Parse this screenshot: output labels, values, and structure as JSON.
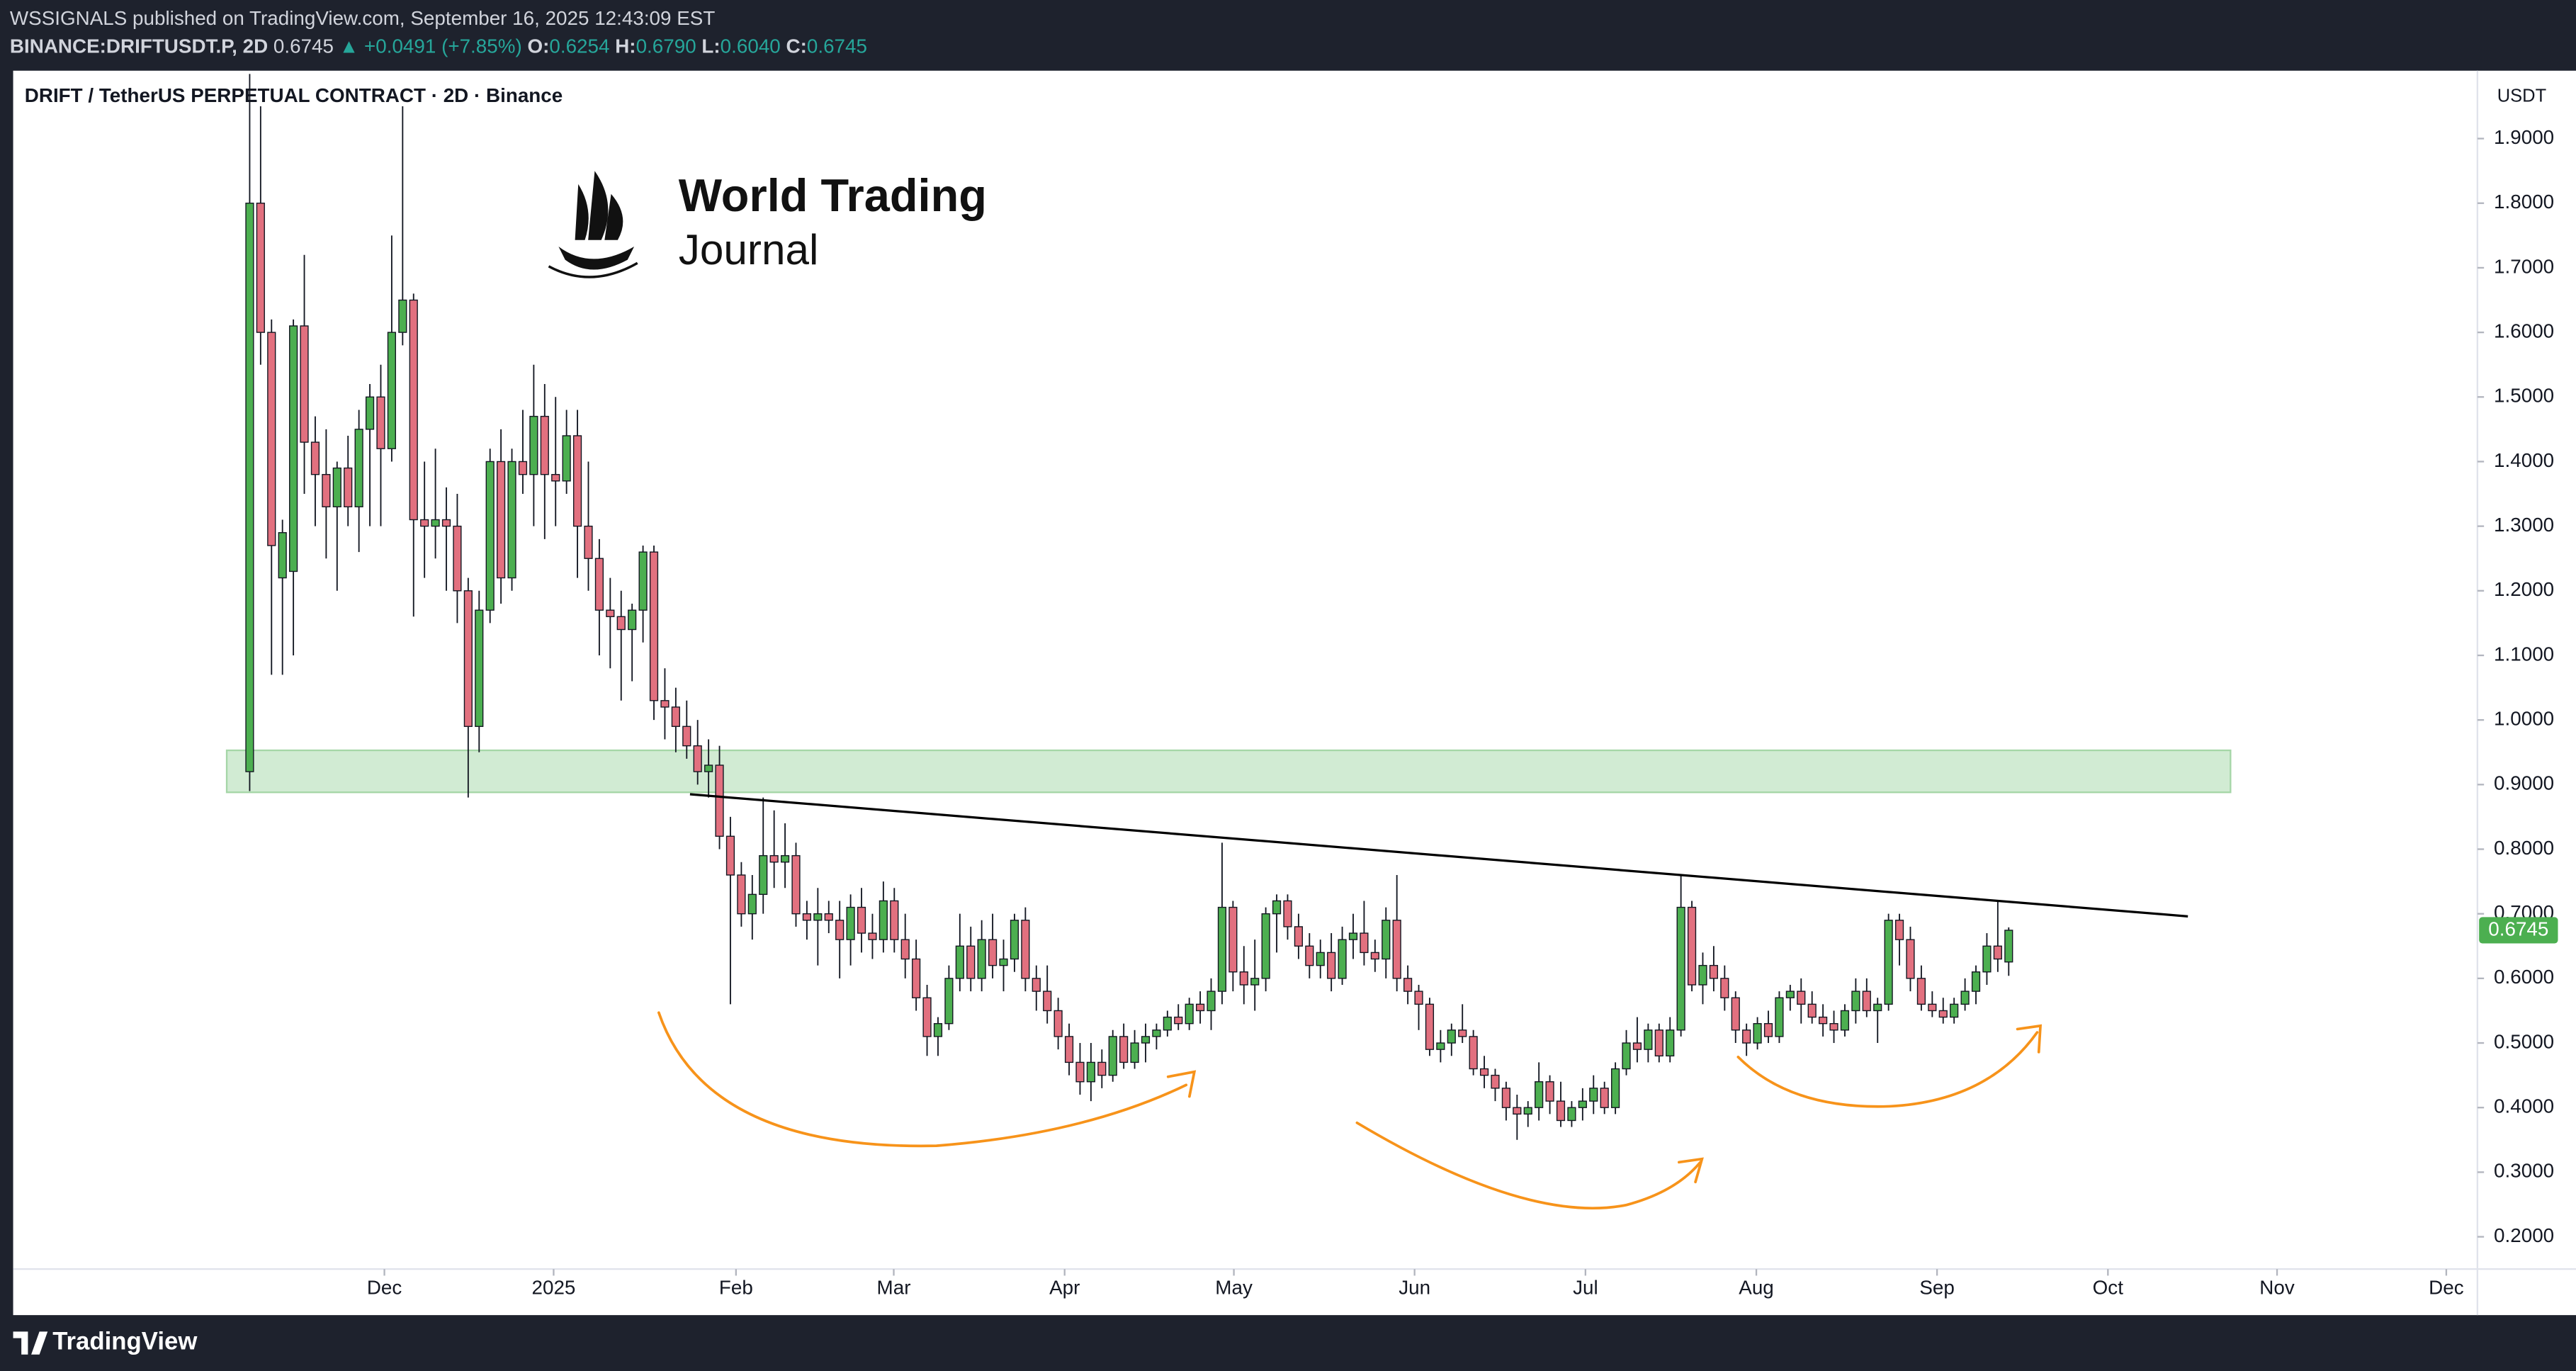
{
  "header": {
    "publisher": "WSSIGNALS published on TradingView.com, September 16, 2025 12:43:09 EST",
    "symbol": "BINANCE:DRIFTUSDT.P, 2D",
    "last": "0.6745",
    "change": "▲ +0.0491 (+7.85%)",
    "ohlc": [
      {
        "label": "O:",
        "value": "0.6254"
      },
      {
        "label": "H:",
        "value": "0.6790"
      },
      {
        "label": "L:",
        "value": "0.6040"
      },
      {
        "label": "C:",
        "value": "0.6745"
      }
    ]
  },
  "brand": {
    "line1": "World Trading",
    "line2": "Journal"
  },
  "footer": {
    "logo": "TradingView"
  },
  "chart_data": {
    "type": "candlestick",
    "title": "DRIFT / TetherUS PERPETUAL CONTRACT · 2D · Binance",
    "y_axis_label": "USDT",
    "up_color": "#4caf50",
    "down_color": "#e2707f",
    "grid": false,
    "ylim": [
      0.15,
      2.0
    ],
    "yticks": [
      {
        "value": 0.2,
        "label": "0.2000"
      },
      {
        "value": 0.3,
        "label": "0.3000"
      },
      {
        "value": 0.4,
        "label": "0.4000"
      },
      {
        "value": 0.5,
        "label": "0.5000"
      },
      {
        "value": 0.6,
        "label": "0.6000"
      },
      {
        "value": 0.7,
        "label": "0.7000"
      },
      {
        "value": 0.8,
        "label": "0.8000"
      },
      {
        "value": 0.9,
        "label": "0.9000"
      },
      {
        "value": 1.0,
        "label": "1.0000"
      },
      {
        "value": 1.1,
        "label": "1.1000"
      },
      {
        "value": 1.2,
        "label": "1.2000"
      },
      {
        "value": 1.3,
        "label": "1.3000"
      },
      {
        "value": 1.4,
        "label": "1.4000"
      },
      {
        "value": 1.5,
        "label": "1.5000"
      },
      {
        "value": 1.6,
        "label": "1.6000"
      },
      {
        "value": 1.7,
        "label": "1.7000"
      },
      {
        "value": 1.8,
        "label": "1.8000"
      },
      {
        "value": 1.9,
        "label": "1.9000"
      }
    ],
    "xlim": [
      -21.65,
      203.9
    ],
    "xticks": [
      {
        "value": 12.33,
        "label": "Dec"
      },
      {
        "value": 27.82,
        "label": "2025"
      },
      {
        "value": 44.51,
        "label": "Feb"
      },
      {
        "value": 58.95,
        "label": "Mar"
      },
      {
        "value": 74.59,
        "label": "Apr"
      },
      {
        "value": 90.08,
        "label": "May"
      },
      {
        "value": 106.62,
        "label": "Jun"
      },
      {
        "value": 122.26,
        "label": "Jul"
      },
      {
        "value": 137.9,
        "label": "Aug"
      },
      {
        "value": 154.44,
        "label": "Sep"
      },
      {
        "value": 170.08,
        "label": "Oct"
      },
      {
        "value": 185.56,
        "label": "Nov"
      },
      {
        "value": 201.05,
        "label": "Dec"
      }
    ],
    "support_zone": {
      "low": 0.888,
      "high": 0.953,
      "start": -2.1,
      "end": 181.3,
      "color": "#d1ebd3"
    },
    "trendline": {
      "x": [
        40.3,
        177.4
      ],
      "y": [
        0.885,
        0.696
      ],
      "color": "#000000"
    },
    "ohlc": [
      [
        0.92,
        2.0,
        0.89,
        1.8
      ],
      [
        1.8,
        1.95,
        1.55,
        1.6
      ],
      [
        1.6,
        1.62,
        1.07,
        1.27
      ],
      [
        1.22,
        1.31,
        1.07,
        1.29
      ],
      [
        1.23,
        1.62,
        1.1,
        1.61
      ],
      [
        1.61,
        1.72,
        1.35,
        1.43
      ],
      [
        1.43,
        1.47,
        1.3,
        1.38
      ],
      [
        1.38,
        1.45,
        1.25,
        1.33
      ],
      [
        1.33,
        1.4,
        1.2,
        1.39
      ],
      [
        1.39,
        1.44,
        1.3,
        1.33
      ],
      [
        1.33,
        1.48,
        1.26,
        1.45
      ],
      [
        1.45,
        1.52,
        1.3,
        1.5
      ],
      [
        1.5,
        1.55,
        1.3,
        1.42
      ],
      [
        1.42,
        1.75,
        1.4,
        1.6
      ],
      [
        1.6,
        1.95,
        1.58,
        1.65
      ],
      [
        1.65,
        1.66,
        1.16,
        1.31
      ],
      [
        1.31,
        1.4,
        1.22,
        1.3
      ],
      [
        1.3,
        1.42,
        1.25,
        1.31
      ],
      [
        1.31,
        1.36,
        1.2,
        1.3
      ],
      [
        1.3,
        1.35,
        1.15,
        1.2
      ],
      [
        1.2,
        1.22,
        0.88,
        0.99
      ],
      [
        0.99,
        1.2,
        0.95,
        1.17
      ],
      [
        1.17,
        1.42,
        1.15,
        1.4
      ],
      [
        1.4,
        1.45,
        1.18,
        1.22
      ],
      [
        1.22,
        1.42,
        1.2,
        1.4
      ],
      [
        1.4,
        1.48,
        1.35,
        1.38
      ],
      [
        1.38,
        1.55,
        1.3,
        1.47
      ],
      [
        1.47,
        1.52,
        1.28,
        1.38
      ],
      [
        1.38,
        1.5,
        1.3,
        1.37
      ],
      [
        1.37,
        1.48,
        1.35,
        1.44
      ],
      [
        1.44,
        1.48,
        1.22,
        1.3
      ],
      [
        1.3,
        1.4,
        1.2,
        1.25
      ],
      [
        1.25,
        1.28,
        1.1,
        1.17
      ],
      [
        1.17,
        1.22,
        1.08,
        1.16
      ],
      [
        1.16,
        1.2,
        1.03,
        1.14
      ],
      [
        1.14,
        1.18,
        1.06,
        1.17
      ],
      [
        1.17,
        1.27,
        1.12,
        1.26
      ],
      [
        1.26,
        1.27,
        1.0,
        1.03
      ],
      [
        1.03,
        1.08,
        0.97,
        1.02
      ],
      [
        1.02,
        1.05,
        0.95,
        0.99
      ],
      [
        0.99,
        1.03,
        0.94,
        0.96
      ],
      [
        0.96,
        1.0,
        0.9,
        0.92
      ],
      [
        0.92,
        0.97,
        0.88,
        0.93
      ],
      [
        0.93,
        0.96,
        0.8,
        0.82
      ],
      [
        0.82,
        0.85,
        0.56,
        0.76
      ],
      [
        0.76,
        0.78,
        0.68,
        0.7
      ],
      [
        0.7,
        0.76,
        0.66,
        0.73
      ],
      [
        0.73,
        0.88,
        0.7,
        0.79
      ],
      [
        0.79,
        0.86,
        0.74,
        0.78
      ],
      [
        0.78,
        0.84,
        0.74,
        0.79
      ],
      [
        0.79,
        0.81,
        0.68,
        0.7
      ],
      [
        0.7,
        0.72,
        0.66,
        0.69
      ],
      [
        0.69,
        0.74,
        0.62,
        0.7
      ],
      [
        0.7,
        0.72,
        0.67,
        0.69
      ],
      [
        0.69,
        0.72,
        0.6,
        0.66
      ],
      [
        0.66,
        0.73,
        0.62,
        0.71
      ],
      [
        0.71,
        0.74,
        0.64,
        0.67
      ],
      [
        0.67,
        0.7,
        0.63,
        0.66
      ],
      [
        0.66,
        0.75,
        0.64,
        0.72
      ],
      [
        0.72,
        0.74,
        0.64,
        0.66
      ],
      [
        0.66,
        0.7,
        0.6,
        0.63
      ],
      [
        0.63,
        0.66,
        0.55,
        0.57
      ],
      [
        0.57,
        0.59,
        0.48,
        0.51
      ],
      [
        0.51,
        0.54,
        0.48,
        0.53
      ],
      [
        0.53,
        0.62,
        0.52,
        0.6
      ],
      [
        0.6,
        0.7,
        0.58,
        0.65
      ],
      [
        0.65,
        0.68,
        0.58,
        0.6
      ],
      [
        0.6,
        0.69,
        0.58,
        0.66
      ],
      [
        0.66,
        0.7,
        0.6,
        0.62
      ],
      [
        0.62,
        0.66,
        0.58,
        0.63
      ],
      [
        0.63,
        0.7,
        0.61,
        0.69
      ],
      [
        0.69,
        0.71,
        0.58,
        0.6
      ],
      [
        0.6,
        0.62,
        0.55,
        0.58
      ],
      [
        0.58,
        0.62,
        0.53,
        0.55
      ],
      [
        0.55,
        0.57,
        0.49,
        0.51
      ],
      [
        0.51,
        0.53,
        0.45,
        0.47
      ],
      [
        0.47,
        0.5,
        0.42,
        0.44
      ],
      [
        0.44,
        0.5,
        0.41,
        0.47
      ],
      [
        0.47,
        0.49,
        0.43,
        0.45
      ],
      [
        0.45,
        0.52,
        0.44,
        0.51
      ],
      [
        0.51,
        0.53,
        0.46,
        0.47
      ],
      [
        0.47,
        0.52,
        0.46,
        0.5
      ],
      [
        0.5,
        0.53,
        0.47,
        0.51
      ],
      [
        0.51,
        0.53,
        0.49,
        0.52
      ],
      [
        0.52,
        0.55,
        0.51,
        0.54
      ],
      [
        0.54,
        0.56,
        0.52,
        0.53
      ],
      [
        0.53,
        0.57,
        0.52,
        0.56
      ],
      [
        0.56,
        0.58,
        0.53,
        0.55
      ],
      [
        0.55,
        0.6,
        0.52,
        0.58
      ],
      [
        0.58,
        0.81,
        0.56,
        0.71
      ],
      [
        0.71,
        0.72,
        0.58,
        0.61
      ],
      [
        0.61,
        0.65,
        0.56,
        0.59
      ],
      [
        0.59,
        0.66,
        0.55,
        0.6
      ],
      [
        0.6,
        0.71,
        0.58,
        0.7
      ],
      [
        0.7,
        0.73,
        0.64,
        0.72
      ],
      [
        0.72,
        0.73,
        0.66,
        0.68
      ],
      [
        0.68,
        0.7,
        0.63,
        0.65
      ],
      [
        0.65,
        0.67,
        0.6,
        0.62
      ],
      [
        0.62,
        0.66,
        0.6,
        0.64
      ],
      [
        0.64,
        0.67,
        0.58,
        0.6
      ],
      [
        0.6,
        0.68,
        0.59,
        0.66
      ],
      [
        0.66,
        0.7,
        0.63,
        0.67
      ],
      [
        0.67,
        0.72,
        0.62,
        0.64
      ],
      [
        0.64,
        0.66,
        0.61,
        0.63
      ],
      [
        0.63,
        0.71,
        0.6,
        0.69
      ],
      [
        0.69,
        0.76,
        0.58,
        0.6
      ],
      [
        0.6,
        0.62,
        0.56,
        0.58
      ],
      [
        0.58,
        0.59,
        0.52,
        0.56
      ],
      [
        0.56,
        0.57,
        0.48,
        0.49
      ],
      [
        0.49,
        0.52,
        0.47,
        0.5
      ],
      [
        0.5,
        0.53,
        0.48,
        0.52
      ],
      [
        0.52,
        0.56,
        0.5,
        0.51
      ],
      [
        0.51,
        0.52,
        0.45,
        0.46
      ],
      [
        0.46,
        0.48,
        0.43,
        0.45
      ],
      [
        0.45,
        0.46,
        0.41,
        0.43
      ],
      [
        0.43,
        0.44,
        0.38,
        0.4
      ],
      [
        0.4,
        0.42,
        0.35,
        0.39
      ],
      [
        0.39,
        0.41,
        0.37,
        0.4
      ],
      [
        0.4,
        0.47,
        0.38,
        0.44
      ],
      [
        0.44,
        0.45,
        0.39,
        0.41
      ],
      [
        0.41,
        0.44,
        0.37,
        0.38
      ],
      [
        0.38,
        0.41,
        0.37,
        0.4
      ],
      [
        0.4,
        0.43,
        0.38,
        0.41
      ],
      [
        0.41,
        0.45,
        0.39,
        0.43
      ],
      [
        0.43,
        0.44,
        0.39,
        0.4
      ],
      [
        0.4,
        0.47,
        0.39,
        0.46
      ],
      [
        0.46,
        0.52,
        0.45,
        0.5
      ],
      [
        0.5,
        0.54,
        0.47,
        0.49
      ],
      [
        0.49,
        0.53,
        0.47,
        0.52
      ],
      [
        0.52,
        0.53,
        0.47,
        0.48
      ],
      [
        0.48,
        0.54,
        0.47,
        0.52
      ],
      [
        0.52,
        0.76,
        0.51,
        0.71
      ],
      [
        0.71,
        0.72,
        0.58,
        0.59
      ],
      [
        0.59,
        0.64,
        0.56,
        0.62
      ],
      [
        0.62,
        0.65,
        0.58,
        0.6
      ],
      [
        0.6,
        0.62,
        0.55,
        0.57
      ],
      [
        0.57,
        0.58,
        0.5,
        0.52
      ],
      [
        0.52,
        0.53,
        0.48,
        0.5
      ],
      [
        0.5,
        0.54,
        0.49,
        0.53
      ],
      [
        0.53,
        0.55,
        0.5,
        0.51
      ],
      [
        0.51,
        0.58,
        0.5,
        0.57
      ],
      [
        0.57,
        0.59,
        0.55,
        0.58
      ],
      [
        0.58,
        0.6,
        0.53,
        0.56
      ],
      [
        0.56,
        0.58,
        0.53,
        0.54
      ],
      [
        0.54,
        0.56,
        0.51,
        0.53
      ],
      [
        0.53,
        0.55,
        0.5,
        0.52
      ],
      [
        0.52,
        0.56,
        0.51,
        0.55
      ],
      [
        0.55,
        0.6,
        0.53,
        0.58
      ],
      [
        0.58,
        0.6,
        0.54,
        0.55
      ],
      [
        0.55,
        0.57,
        0.5,
        0.56
      ],
      [
        0.56,
        0.7,
        0.55,
        0.69
      ],
      [
        0.69,
        0.7,
        0.62,
        0.66
      ],
      [
        0.66,
        0.68,
        0.58,
        0.6
      ],
      [
        0.6,
        0.62,
        0.55,
        0.56
      ],
      [
        0.56,
        0.58,
        0.54,
        0.55
      ],
      [
        0.55,
        0.57,
        0.53,
        0.54
      ],
      [
        0.54,
        0.57,
        0.53,
        0.56
      ],
      [
        0.56,
        0.6,
        0.55,
        0.58
      ],
      [
        0.58,
        0.62,
        0.56,
        0.61
      ],
      [
        0.61,
        0.67,
        0.59,
        0.65
      ],
      [
        0.65,
        0.72,
        0.61,
        0.63
      ],
      [
        0.6254,
        0.679,
        0.604,
        0.6745
      ]
    ]
  }
}
